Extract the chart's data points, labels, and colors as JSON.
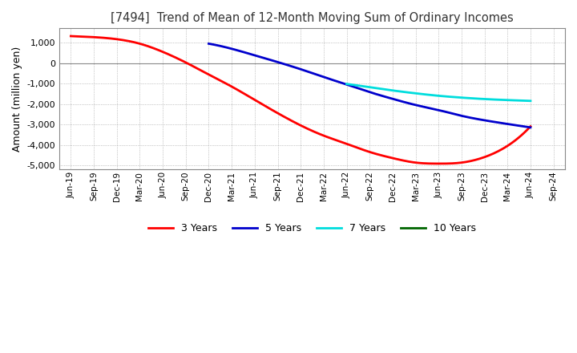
{
  "title": "[7494]  Trend of Mean of 12-Month Moving Sum of Ordinary Incomes",
  "ylabel": "Amount (million yen)",
  "background_color": "#ffffff",
  "grid_color": "#999999",
  "ylim": [
    -5200,
    1700
  ],
  "yticks": [
    -5000,
    -4000,
    -3000,
    -2000,
    -1000,
    0,
    1000
  ],
  "series": {
    "3years": {
      "color": "#ff0000",
      "label": "3 Years",
      "x_indices": [
        0,
        1,
        2,
        3,
        4,
        5,
        6,
        7,
        8,
        9,
        10,
        11,
        12,
        13,
        14,
        15,
        16,
        17,
        18,
        19,
        20
      ],
      "values": [
        1320,
        1270,
        1170,
        950,
        550,
        30,
        -560,
        -1150,
        -1800,
        -2450,
        -3050,
        -3550,
        -3950,
        -4350,
        -4650,
        -4870,
        -4920,
        -4870,
        -4600,
        -4050,
        -3100
      ]
    },
    "5years": {
      "color": "#0000cc",
      "label": "5 Years",
      "x_indices": [
        6,
        7,
        8,
        9,
        10,
        11,
        12,
        13,
        14,
        15,
        16,
        17,
        18,
        19,
        20
      ],
      "values": [
        950,
        700,
        380,
        50,
        -300,
        -680,
        -1050,
        -1420,
        -1750,
        -2050,
        -2300,
        -2580,
        -2800,
        -2980,
        -3150
      ]
    },
    "7years": {
      "color": "#00dddd",
      "label": "7 Years",
      "x_indices": [
        12,
        13,
        14,
        15,
        16,
        17,
        18,
        19,
        20
      ],
      "values": [
        -1020,
        -1180,
        -1340,
        -1480,
        -1600,
        -1690,
        -1760,
        -1810,
        -1850
      ]
    },
    "10years": {
      "color": "#006600",
      "label": "10 Years",
      "x_indices": [],
      "values": []
    }
  },
  "x_labels": [
    "Jun-19",
    "Sep-19",
    "Dec-19",
    "Mar-20",
    "Jun-20",
    "Sep-20",
    "Dec-20",
    "Mar-21",
    "Jun-21",
    "Sep-21",
    "Dec-21",
    "Mar-22",
    "Jun-22",
    "Sep-22",
    "Dec-22",
    "Mar-23",
    "Jun-23",
    "Sep-23",
    "Dec-23",
    "Mar-24",
    "Jun-24",
    "Sep-24"
  ]
}
